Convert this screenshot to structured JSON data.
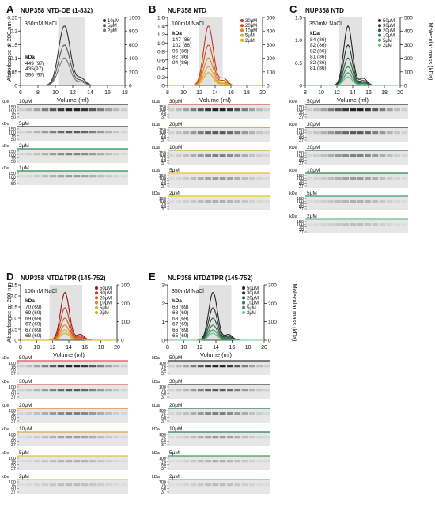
{
  "panels": [
    {
      "letter": "A",
      "title": "NUP358 NTD-OE (1-832)",
      "buffer": "350mM NaCl",
      "x_axis": {
        "label": "Volume (ml)",
        "ticks": [
          "6",
          "8",
          "10",
          "12",
          "14",
          "16",
          "18"
        ]
      },
      "left_axis": {
        "label": "Absorbance at 280 nm",
        "ticks": [
          "0",
          "0.05",
          "0.1",
          "0.15",
          "0.2",
          "0.25"
        ]
      },
      "right_axis": {
        "label": "",
        "ticks": [
          "0",
          "200",
          "400",
          "600",
          "800",
          "1000"
        ]
      },
      "legend": [
        "10μM",
        "5μM",
        "2μM"
      ],
      "legend_colors": [
        "#333333",
        "#555555",
        "#777777"
      ],
      "mass_header": "kDa",
      "masses": [
        "449 (97)",
        "435(97)",
        "396 (97)"
      ],
      "mass_colors": [
        "#222222",
        "#444444",
        "#555555"
      ],
      "gels": [
        {
          "label": "10μM",
          "ticks": [
            "150",
            "100",
            "75",
            "50"
          ],
          "line_color": "#333333"
        },
        {
          "label": "5μM",
          "ticks": [
            "150",
            "100",
            "75",
            "50"
          ],
          "line_color": "#333333"
        },
        {
          "label": "2μM",
          "ticks": [
            "150",
            "100",
            "75",
            "50"
          ],
          "line_color": "#2e8b57"
        },
        {
          "label": "1μM",
          "ticks": [
            "150",
            "100",
            "75",
            "50"
          ],
          "line_color": "#2e8b57"
        }
      ]
    },
    {
      "letter": "B",
      "title": "NUP358 NTD",
      "buffer": "100mM NaCl",
      "x_axis": {
        "label": "Volume (ml)",
        "ticks": [
          "8",
          "10",
          "12",
          "14",
          "16",
          "18",
          "20"
        ]
      },
      "left_axis": {
        "label": "",
        "ticks": [
          "0",
          "0.2",
          "0.4",
          "0.6",
          "0.8",
          "1.0",
          "1.2",
          "1.4",
          "1.6"
        ]
      },
      "right_axis": {
        "label": "",
        "ticks": [
          "0",
          "100",
          "200",
          "300",
          "400",
          "500"
        ]
      },
      "legend": [
        "30μM",
        "20μM",
        "10μM",
        "5μM",
        "2μM"
      ],
      "legend_colors": [
        "#c0392b",
        "#d35400",
        "#e67e22",
        "#e6a23c",
        "#d4b000"
      ],
      "mass_header": "kDa",
      "masses": [
        "147 (86)",
        "102 (86)",
        "95 (86)",
        "82 (86)",
        "94 (86)"
      ],
      "mass_colors": [
        "#c0392b",
        "#d35400",
        "#e67e22",
        "#c89b2c",
        "#b8a000"
      ],
      "gels": [
        {
          "label": "30μM",
          "ticks": [
            "150",
            "100",
            "75",
            "50",
            "37"
          ],
          "line_color": "#d9534f"
        },
        {
          "label": "20μM",
          "ticks": [
            "150",
            "100",
            "75",
            "50",
            "37"
          ],
          "line_color": "#e67e22"
        },
        {
          "label": "10μM",
          "ticks": [
            "150",
            "100",
            "75",
            "50",
            "37"
          ],
          "line_color": "#e6a23c"
        },
        {
          "label": "5μM",
          "ticks": [
            "150",
            "100",
            "75",
            "50",
            "37"
          ],
          "line_color": "#e6c03c"
        },
        {
          "label": "2μM",
          "ticks": [
            "150",
            "100",
            "75",
            "50",
            "37"
          ],
          "line_color": "#e6d000"
        }
      ]
    },
    {
      "letter": "C",
      "title": "NUP358 NTD",
      "buffer": "350mM NaCl",
      "x_axis": {
        "label": "Volume (ml)",
        "ticks": [
          "8",
          "10",
          "12",
          "14",
          "16",
          "18",
          "20"
        ]
      },
      "left_axis": {
        "label": "",
        "ticks": [
          "0",
          "0.5",
          "1.0",
          "1.5"
        ]
      },
      "right_axis": {
        "label": "Molecular mass (kDa)",
        "ticks": [
          "0",
          "100",
          "200",
          "300",
          "400",
          "500"
        ]
      },
      "legend": [
        "50μM",
        "30μM",
        "20μM",
        "10μM",
        "5μM",
        "2μM"
      ],
      "legend_colors": [
        "#222222",
        "#333333",
        "#1e5b3a",
        "#2e7d4f",
        "#3e9a62",
        "#6cc08a"
      ],
      "mass_header": "kDa",
      "masses": [
        "84 (86)",
        "82 (86)",
        "82 (86)",
        "81 (86)",
        "82 (86)",
        "81 (86)"
      ],
      "mass_colors": [
        "#222222",
        "#333333",
        "#1e5b3a",
        "#2e7d4f",
        "#3e9a62",
        "#55b077"
      ],
      "gels": [
        {
          "label": "50μM",
          "ticks": [
            "150",
            "100",
            "75",
            "50",
            "37"
          ],
          "line_color": "#333333"
        },
        {
          "label": "30μM",
          "ticks": [
            "150",
            "100",
            "75",
            "50",
            "37"
          ],
          "line_color": "#333333"
        },
        {
          "label": "20μM",
          "ticks": [
            "150",
            "100",
            "75",
            "50",
            "37"
          ],
          "line_color": "#2e7d4f"
        },
        {
          "label": "10μM",
          "ticks": [
            "150",
            "100",
            "75",
            "50",
            "37"
          ],
          "line_color": "#2e7d4f"
        },
        {
          "label": "5μM",
          "ticks": [
            "150",
            "100",
            "75",
            "50",
            "37"
          ],
          "line_color": "#3e9a62"
        },
        {
          "label": "2μM",
          "ticks": [
            "150",
            "100",
            "75",
            "50",
            "37"
          ],
          "line_color": "#6cc08a"
        }
      ]
    },
    {
      "letter": "D",
      "title": "NUP358 NTDΔTPR (145-752)",
      "buffer": "100mM NaCl",
      "x_axis": {
        "label": "Volume (ml)",
        "ticks": [
          "8",
          "10",
          "12",
          "14",
          "16",
          "18",
          "20"
        ]
      },
      "left_axis": {
        "label": "Absorbance at 280 nm",
        "ticks": [
          "0",
          "0.5",
          "1.0",
          "1.5",
          "2.0",
          "2.5"
        ]
      },
      "right_axis": {
        "label": "",
        "ticks": [
          "0",
          "100",
          "200",
          "300"
        ]
      },
      "legend": [
        "50μM",
        "30μM",
        "20μM",
        "10μM",
        "5μM",
        "2μM"
      ],
      "legend_colors": [
        "#a01010",
        "#c0392b",
        "#d35400",
        "#e67e22",
        "#e6a23c",
        "#d4b000"
      ],
      "mass_header": "kDa",
      "masses": [
        "70 (69)",
        "69 (69)",
        "69 (69)",
        "67 (69)",
        "67 (69)",
        "68 (69)"
      ],
      "mass_colors": [
        "#a01010",
        "#c0392b",
        "#c0392b",
        "#d35400",
        "#c89b2c",
        "#b8a000"
      ],
      "gels": [
        {
          "label": "50μM",
          "ticks": [
            "100",
            "75",
            "50",
            "37"
          ],
          "line_color": "#d9534f"
        },
        {
          "label": "30μM",
          "ticks": [
            "100",
            "75",
            "50",
            "37"
          ],
          "line_color": "#d9534f"
        },
        {
          "label": "20μM",
          "ticks": [
            "100",
            "75",
            "50",
            "37"
          ],
          "line_color": "#e67e22"
        },
        {
          "label": "10μM",
          "ticks": [
            "100",
            "75",
            "50",
            "37"
          ],
          "line_color": "#e6a23c"
        },
        {
          "label": "5μM",
          "ticks": [
            "100",
            "75",
            "50",
            "37"
          ],
          "line_color": "#e6c03c"
        },
        {
          "label": "2μM",
          "ticks": [
            "100",
            "75",
            "50",
            "37"
          ],
          "line_color": "#e6d000"
        }
      ]
    },
    {
      "letter": "E",
      "title": "NUP358 NTDΔTPR (145-752)",
      "buffer": "350mM NaCl",
      "x_axis": {
        "label": "Volume (ml)",
        "ticks": [
          "8",
          "10",
          "12",
          "14",
          "16",
          "18",
          "20"
        ]
      },
      "left_axis": {
        "label": "",
        "ticks": [
          "0",
          "1",
          "2",
          "3"
        ]
      },
      "right_axis": {
        "label": "Molecular mass (kDa)",
        "ticks": [
          "0",
          "100",
          "200",
          "300"
        ]
      },
      "legend": [
        "50μM",
        "30μM",
        "20μM",
        "10μM",
        "5μM",
        "2μM"
      ],
      "legend_colors": [
        "#222222",
        "#333333",
        "#1e5b3a",
        "#2e7d4f",
        "#3e9a62",
        "#6cc08a"
      ],
      "mass_header": "kDa",
      "masses": [
        "68 (69)",
        "68 (69)",
        "68 (69)",
        "67 (69)",
        "66 (69)",
        "65 (69)"
      ],
      "mass_colors": [
        "#222222",
        "#333333",
        "#1e5b3a",
        "#2e7d4f",
        "#3e9a62",
        "#55b077"
      ],
      "gels": [
        {
          "label": "50μM",
          "ticks": [
            "100",
            "75",
            "50",
            "37"
          ],
          "line_color": "#333333"
        },
        {
          "label": "30μM",
          "ticks": [
            "100",
            "75",
            "50",
            "37"
          ],
          "line_color": "#333333"
        },
        {
          "label": "20μM",
          "ticks": [
            "100",
            "75",
            "50",
            "37"
          ],
          "line_color": "#2e7d4f"
        },
        {
          "label": "10μM",
          "ticks": [
            "100",
            "75",
            "50",
            "37"
          ],
          "line_color": "#2e7d4f"
        },
        {
          "label": "5μM",
          "ticks": [
            "100",
            "75",
            "50",
            "37"
          ],
          "line_color": "#3e9a62"
        },
        {
          "label": "2μM",
          "ticks": [
            "100",
            "75",
            "50",
            "37"
          ],
          "line_color": "#6cc08a"
        }
      ]
    }
  ]
}
